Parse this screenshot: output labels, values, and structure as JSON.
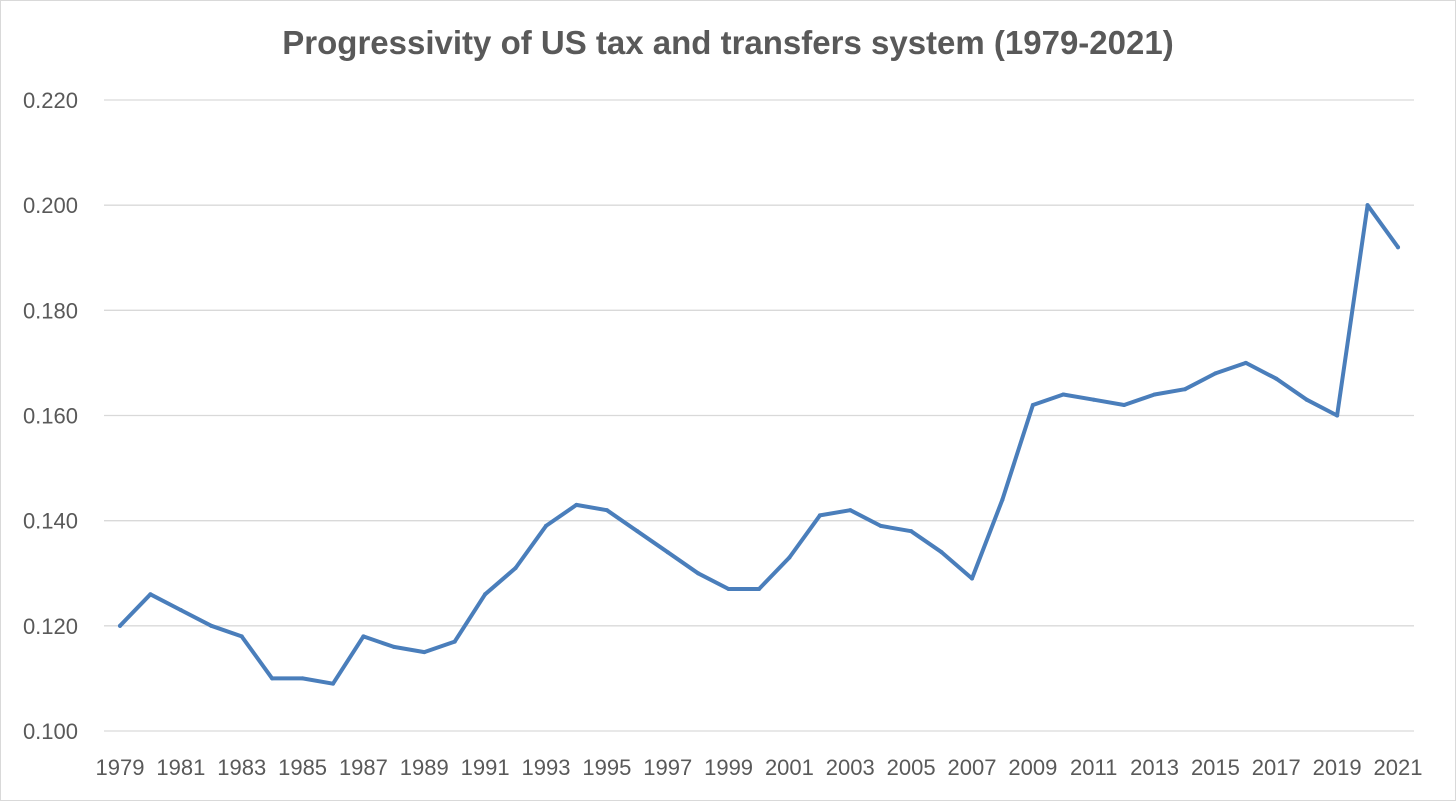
{
  "chart_data": {
    "type": "line",
    "title": "Progressivity of US tax and transfers system (1979-2021)",
    "xlabel": "",
    "ylabel": "",
    "ylim": [
      0.1,
      0.22
    ],
    "ytick_step": 0.02,
    "ytick_labels": [
      "0.100",
      "0.120",
      "0.140",
      "0.160",
      "0.180",
      "0.200",
      "0.220"
    ],
    "grid": true,
    "legend": "none",
    "x": [
      1979,
      1980,
      1981,
      1982,
      1983,
      1984,
      1985,
      1986,
      1987,
      1988,
      1989,
      1990,
      1991,
      1992,
      1993,
      1994,
      1995,
      1996,
      1997,
      1998,
      1999,
      2000,
      2001,
      2002,
      2003,
      2004,
      2005,
      2006,
      2007,
      2008,
      2009,
      2010,
      2011,
      2012,
      2013,
      2014,
      2015,
      2016,
      2017,
      2018,
      2019,
      2020,
      2021
    ],
    "xtick_labels": [
      "1979",
      "1981",
      "1983",
      "1985",
      "1987",
      "1989",
      "1991",
      "1993",
      "1995",
      "1997",
      "1999",
      "2001",
      "2003",
      "2005",
      "2007",
      "2009",
      "2011",
      "2013",
      "2015",
      "2017",
      "2019",
      "2021"
    ],
    "series": [
      {
        "name": "Progressivity",
        "color": "#4a7ebb",
        "values": [
          0.12,
          0.126,
          0.123,
          0.12,
          0.118,
          0.11,
          0.11,
          0.109,
          0.118,
          0.116,
          0.115,
          0.117,
          0.126,
          0.131,
          0.139,
          0.143,
          0.142,
          0.138,
          0.134,
          0.13,
          0.127,
          0.127,
          0.133,
          0.141,
          0.142,
          0.139,
          0.138,
          0.134,
          0.129,
          0.144,
          0.162,
          0.164,
          0.163,
          0.162,
          0.164,
          0.165,
          0.168,
          0.17,
          0.167,
          0.163,
          0.16,
          0.2,
          0.192
        ]
      }
    ]
  }
}
